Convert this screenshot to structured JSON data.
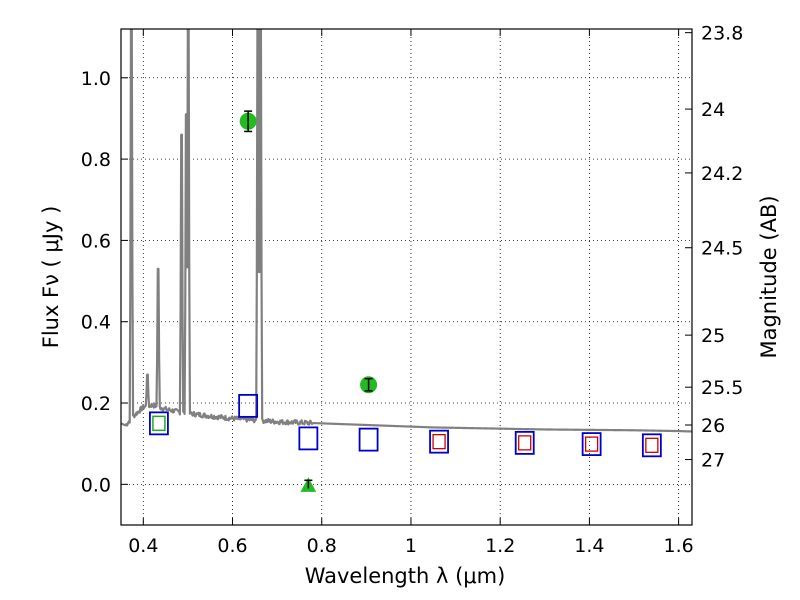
{
  "chart_data": {
    "type": "scatter",
    "xlabel": "Wavelength  λ (μm)",
    "ylabel": "Flux  Fν  ( μJy )",
    "ylabel_right": "Magnitude (AB)",
    "xlim": [
      0.35,
      1.63
    ],
    "ylim": [
      -0.1,
      1.12
    ],
    "grid": true,
    "x_ticks": [
      0.4,
      0.6,
      0.8,
      1.0,
      1.2,
      1.4,
      1.6
    ],
    "x_tick_labels": [
      "0.4",
      "0.6",
      "0.8",
      "1",
      "1.2",
      "1.4",
      "1.6"
    ],
    "y_ticks": [
      0.0,
      0.2,
      0.4,
      0.6,
      0.8,
      1.0
    ],
    "y_tick_labels": [
      "0.0",
      "0.2",
      "0.4",
      "0.6",
      "0.8",
      "1.0"
    ],
    "right_ticks": [
      {
        "flux": 1.111,
        "label": "23.8"
      },
      {
        "flux": 0.923,
        "label": "24"
      },
      {
        "flux": 0.766,
        "label": "24.2"
      },
      {
        "flux": 0.582,
        "label": "24.5"
      },
      {
        "flux": 0.367,
        "label": "25"
      },
      {
        "flux": 0.239,
        "label": "25.5"
      },
      {
        "flux": 0.146,
        "label": "26"
      },
      {
        "flux": 0.061,
        "label": "27"
      }
    ],
    "colors": {
      "model": "#808080",
      "detection": "#22bb22",
      "model_box_blue": "#0000cc",
      "model_box_red": "#cc0000",
      "model_box_green": "#22aa22",
      "grid": "#000000"
    },
    "model_spectrum": {
      "continuum": [
        [
          0.35,
          0.15
        ],
        [
          0.36,
          0.145
        ],
        [
          0.38,
          0.17
        ],
        [
          0.4,
          0.19
        ],
        [
          0.42,
          0.195
        ],
        [
          0.45,
          0.185
        ],
        [
          0.48,
          0.178
        ],
        [
          0.5,
          0.175
        ],
        [
          0.55,
          0.168
        ],
        [
          0.6,
          0.162
        ],
        [
          0.65,
          0.158
        ],
        [
          0.7,
          0.154
        ],
        [
          0.75,
          0.152
        ],
        [
          0.8,
          0.15
        ],
        [
          0.85,
          0.148
        ],
        [
          0.9,
          0.146
        ],
        [
          0.95,
          0.144
        ],
        [
          1.0,
          0.142
        ],
        [
          1.05,
          0.14
        ],
        [
          1.1,
          0.139
        ],
        [
          1.2,
          0.137
        ],
        [
          1.3,
          0.135
        ],
        [
          1.4,
          0.134
        ],
        [
          1.5,
          0.133
        ],
        [
          1.6,
          0.131
        ],
        [
          1.63,
          0.13
        ]
      ],
      "emission_lines": [
        {
          "x": 0.373,
          "peak": 1.2
        },
        {
          "x": 0.41,
          "peak": 0.27
        },
        {
          "x": 0.434,
          "peak": 0.53
        },
        {
          "x": 0.486,
          "peak": 0.86
        },
        {
          "x": 0.496,
          "peak": 0.91
        },
        {
          "x": 0.501,
          "peak": 1.2
        },
        {
          "x": 0.656,
          "peak": 1.2
        },
        {
          "x": 0.663,
          "peak": 1.2
        }
      ]
    },
    "model_photometry": [
      {
        "x": 0.435,
        "y": 0.15,
        "colors": [
          "blue",
          "green"
        ]
      },
      {
        "x": 0.635,
        "y": 0.193,
        "colors": [
          "blue"
        ]
      },
      {
        "x": 0.77,
        "y": 0.113,
        "colors": [
          "blue"
        ]
      },
      {
        "x": 0.905,
        "y": 0.11,
        "colors": [
          "blue"
        ]
      },
      {
        "x": 1.063,
        "y": 0.105,
        "colors": [
          "blue",
          "red"
        ]
      },
      {
        "x": 1.255,
        "y": 0.102,
        "colors": [
          "blue",
          "red"
        ]
      },
      {
        "x": 1.405,
        "y": 0.099,
        "colors": [
          "blue",
          "red"
        ]
      },
      {
        "x": 1.54,
        "y": 0.096,
        "colors": [
          "blue",
          "red"
        ]
      }
    ],
    "detections": [
      {
        "x": 0.635,
        "y": 0.893,
        "yerr": 0.025
      },
      {
        "x": 0.905,
        "y": 0.245,
        "yerr": 0.015
      }
    ],
    "upper_limits": [
      {
        "x": 0.77,
        "y": 0.0,
        "yerr": 0.01
      }
    ]
  }
}
